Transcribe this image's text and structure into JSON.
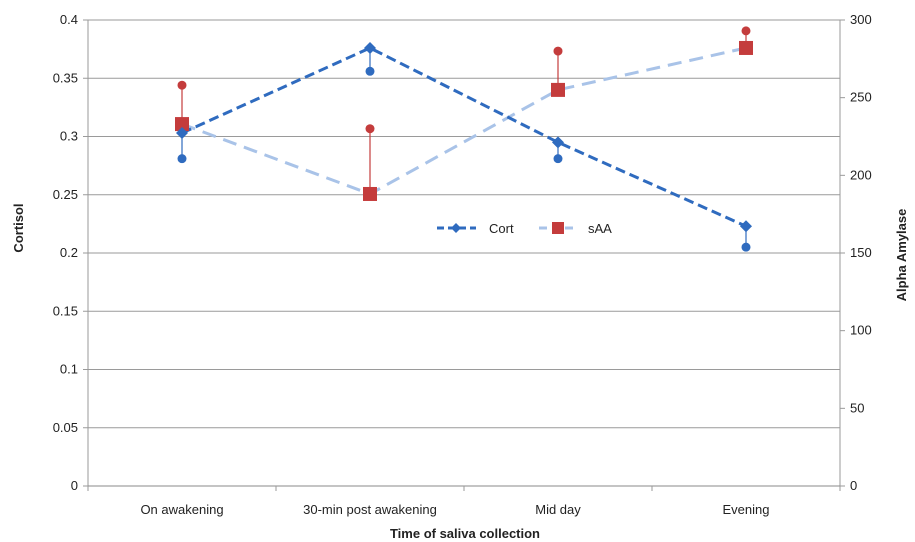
{
  "chart_data": {
    "type": "line",
    "categories": [
      "On awakening",
      "30-min post awakening",
      "Mid day",
      "Evening"
    ],
    "xlabel": "Time of saliva collection",
    "ylabel": "Cortisol",
    "y2label": "Alpha Amylase",
    "ylim": [
      0,
      0.4
    ],
    "y2lim": [
      0,
      300
    ],
    "yticks": [
      "0",
      "0.05",
      "0.1",
      "0.15",
      "0.2",
      "0.25",
      "0.3",
      "0.35",
      "0.4"
    ],
    "y2ticks": [
      "0",
      "50",
      "100",
      "150",
      "200",
      "250",
      "300"
    ],
    "grid": true,
    "legend_position": "center",
    "series": [
      {
        "name": "Cort",
        "axis": "left",
        "color": "#2f6bbf",
        "marker": "diamond",
        "line": "dashed-bold",
        "values": [
          0.303,
          0.376,
          0.295,
          0.223
        ],
        "secondary_points": [
          0.281,
          0.356,
          0.281,
          0.205
        ]
      },
      {
        "name": "sAA",
        "axis": "right",
        "color": "#c43c3c",
        "line_color": "#a9c3e8",
        "marker": "square",
        "line": "dashed-light",
        "values": [
          233,
          188,
          255,
          282
        ],
        "secondary_points": [
          258,
          230,
          280,
          293
        ]
      }
    ]
  }
}
